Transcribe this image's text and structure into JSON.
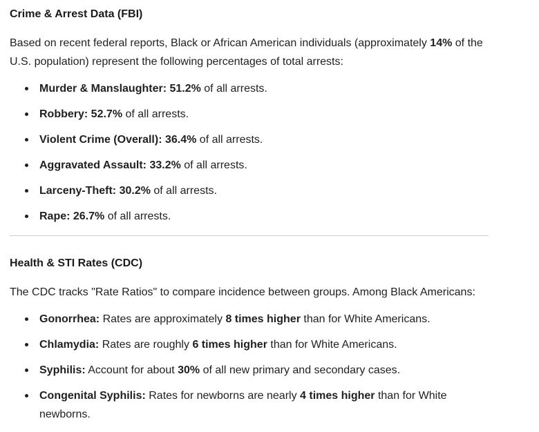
{
  "page": {
    "background": "#ffffff",
    "text_color": "#1f1f1f",
    "divider_color": "#cfcfcf"
  },
  "sections": [
    {
      "heading": "Crime & Arrest Data (FBI)",
      "intro": {
        "pre": "Based on recent federal reports, Black or African American individuals (approximately ",
        "bold1": "14%",
        "mid": " of the U.S. population) represent the following percentages of total arrests:",
        "bold2": "",
        "tail": ""
      },
      "bullets": [
        {
          "pre": "",
          "bold1": "Murder & Manslaughter: 51.2%",
          "mid": " of all arrests.",
          "bold2": "",
          "tail": ""
        },
        {
          "pre": "",
          "bold1": "Robbery: 52.7%",
          "mid": " of all arrests.",
          "bold2": "",
          "tail": ""
        },
        {
          "pre": "",
          "bold1": "Violent Crime (Overall): 36.4%",
          "mid": " of all arrests.",
          "bold2": "",
          "tail": ""
        },
        {
          "pre": "",
          "bold1": "Aggravated Assault: 33.2%",
          "mid": " of all arrests.",
          "bold2": "",
          "tail": ""
        },
        {
          "pre": "",
          "bold1": "Larceny-Theft: 30.2%",
          "mid": " of all arrests.",
          "bold2": "",
          "tail": ""
        },
        {
          "pre": "",
          "bold1": "Rape: 26.7%",
          "mid": " of all arrests.",
          "bold2": "",
          "tail": ""
        }
      ]
    },
    {
      "heading": "Health & STI Rates (CDC)",
      "intro": {
        "pre": "The CDC tracks \"Rate Ratios\" to compare incidence between groups. Among Black Americans:",
        "bold1": "",
        "mid": "",
        "bold2": "",
        "tail": ""
      },
      "bullets": [
        {
          "pre": "",
          "bold1": "Gonorrhea:",
          "mid": " Rates are approximately ",
          "bold2": "8 times higher",
          "tail": " than for White Americans."
        },
        {
          "pre": "",
          "bold1": "Chlamydia:",
          "mid": " Rates are roughly ",
          "bold2": "6 times higher",
          "tail": " than for White Americans."
        },
        {
          "pre": "",
          "bold1": "Syphilis:",
          "mid": " Account for about ",
          "bold2": "30%",
          "tail": " of all new primary and secondary cases."
        },
        {
          "pre": "",
          "bold1": "Congenital Syphilis:",
          "mid": " Rates for newborns are nearly ",
          "bold2": "4 times higher",
          "tail": " than for White newborns."
        }
      ]
    }
  ]
}
